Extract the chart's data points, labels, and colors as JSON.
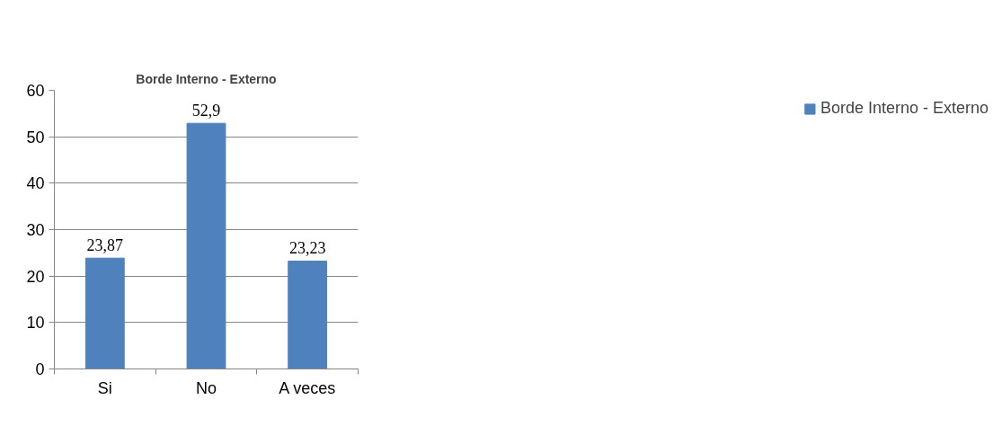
{
  "chart_data": {
    "type": "bar",
    "title": "Borde Interno - Externo",
    "categories": [
      "Si",
      "No",
      "A veces"
    ],
    "series": [
      {
        "name": "Borde Interno - Externo",
        "color": "#4f81bd",
        "values": [
          23.87,
          52.9,
          23.23
        ],
        "value_labels": [
          "23,87",
          "52,9",
          "23,23"
        ]
      }
    ],
    "ylim": [
      0,
      60
    ],
    "yticks": [
      0,
      10,
      20,
      30,
      40,
      50,
      60
    ],
    "grid": "y",
    "legend": "right"
  }
}
